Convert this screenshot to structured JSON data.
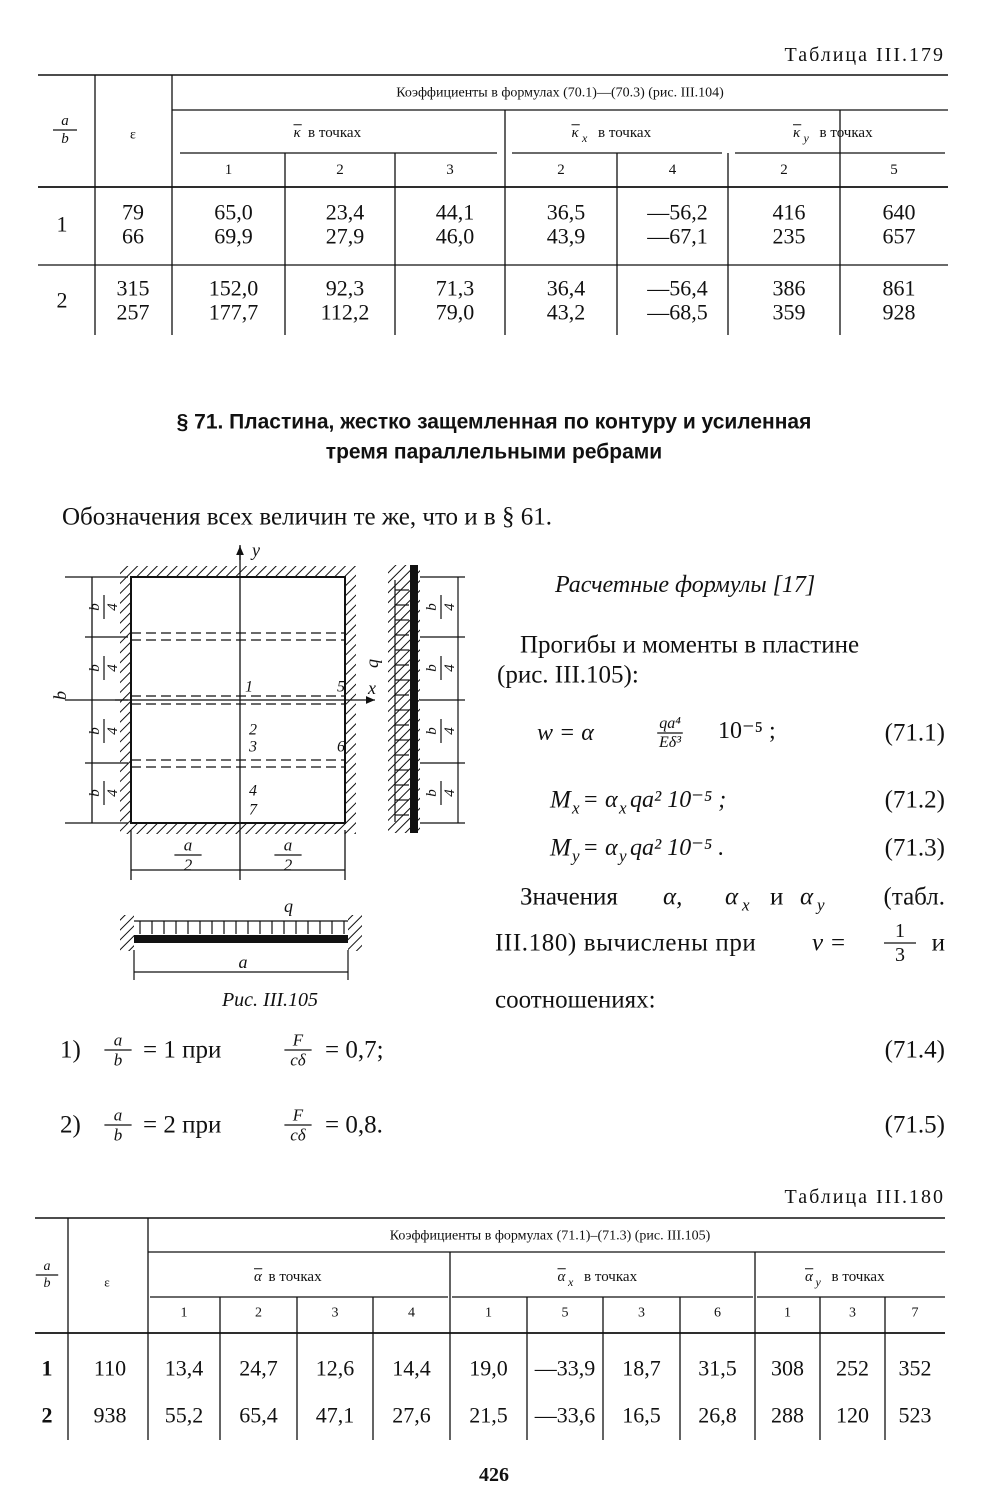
{
  "table1": {
    "caption": "Таблица III.179",
    "ratio": {
      "num": "a",
      "den": "b"
    },
    "eps": "ε",
    "group_title": "Коэффициенты в формулах (70.1)—(70.3) (рис. III.104)",
    "groups": [
      {
        "symbol": "κ",
        "label": "в точках",
        "points": [
          "1",
          "2",
          "3"
        ]
      },
      {
        "symbol": "κ",
        "sub": "x",
        "label": "в точках",
        "points": [
          "2",
          "4"
        ]
      },
      {
        "symbol": "κ",
        "sub": "y",
        "label": "в точках",
        "points": [
          "2",
          "5"
        ]
      }
    ],
    "rows": [
      {
        "ratio": "1",
        "eps": [
          "79",
          "66"
        ],
        "values": [
          [
            "65,0",
            "69,9"
          ],
          [
            "23,4",
            "27,9"
          ],
          [
            "44,1",
            "46,0"
          ],
          [
            "36,5",
            "43,9"
          ],
          [
            "—56,2",
            "—67,1"
          ],
          [
            "416",
            "235"
          ],
          [
            "640",
            "657"
          ]
        ]
      },
      {
        "ratio": "2",
        "eps": [
          "315",
          "257"
        ],
        "values": [
          [
            "152,0",
            "177,7"
          ],
          [
            "92,3",
            "112,2"
          ],
          [
            "71,3",
            "79,0"
          ],
          [
            "36,4",
            "43,2"
          ],
          [
            "—56,4",
            "—68,5"
          ],
          [
            "386",
            "359"
          ],
          [
            "861",
            "928"
          ]
        ]
      }
    ]
  },
  "section": {
    "title_lines": [
      "§ 71. Пластина, жестко защемленная по контуру и усиленная",
      "тремя параллельными ребрами"
    ],
    "note": "Обозначения всех величин те же, что и в § 61."
  },
  "figure": {
    "axis_y": "y",
    "axis_x": "x",
    "side": "b",
    "left_quarters": [
      {
        "num": "b",
        "den": "4"
      },
      {
        "num": "b",
        "den": "4"
      },
      {
        "num": "b",
        "den": "4"
      },
      {
        "num": "b",
        "den": "4"
      }
    ],
    "right_quarters": [
      {
        "num": "b",
        "den": "4"
      },
      {
        "num": "b",
        "den": "4"
      },
      {
        "num": "b",
        "den": "4"
      },
      {
        "num": "b",
        "den": "4"
      }
    ],
    "points": [
      "1",
      "5",
      "2",
      "3",
      "6",
      "4",
      "7"
    ],
    "halves": [
      {
        "num": "a",
        "den": "2"
      },
      {
        "num": "a",
        "den": "2"
      }
    ],
    "load_right": "q",
    "load_bottom": "q",
    "span": "a",
    "caption": "Рис. III.105"
  },
  "formulas": {
    "title": "Расчетные формулы [17]",
    "intro": [
      "Прогибы и моменты в пластине",
      "(рис. III.105):"
    ],
    "f1": {
      "lhs": "w = α",
      "num": "qa⁴",
      "den": "Eδ³",
      "rhs": "10⁻⁵ ;",
      "number": "(71.1)"
    },
    "f2": {
      "symbol": "M",
      "sub": "x",
      "eq": "=",
      "coef": "α",
      "coef_sub": "x",
      "rest": "qa² 10⁻⁵ ;",
      "number": "(71.2)"
    },
    "f3": {
      "symbol": "M",
      "sub": "y",
      "eq": "=",
      "coef": "α",
      "coef_sub": "y",
      "rest": "qa² 10⁻⁵ .",
      "number": "(71.3)"
    },
    "values_text": {
      "start": "Значения",
      "a": "α,",
      "ax": "α",
      "ax_sub": "x",
      "and": "и",
      "ay": "α",
      "ay_sub": "y",
      "end": "(табл.",
      "line2": "III.180) вычислены при",
      "nu": "ν =",
      "nu_frac": {
        "num": "1",
        "den": "3"
      },
      "line2_end": "и",
      "line3": "соотношениях:"
    }
  },
  "conditions": [
    {
      "index": "1)",
      "ratio": {
        "num": "a",
        "den": "b"
      },
      "eq1": "= 1  при",
      "frac": {
        "num": "F",
        "den": "cδ"
      },
      "eq2": "= 0,7;",
      "number": "(71.4)"
    },
    {
      "index": "2)",
      "ratio": {
        "num": "a",
        "den": "b"
      },
      "eq1": "= 2  при",
      "frac": {
        "num": "F",
        "den": "cδ"
      },
      "eq2": "= 0,8.",
      "number": "(71.5)"
    }
  ],
  "table2": {
    "caption": "Таблица III.180",
    "ratio": {
      "num": "a",
      "den": "b"
    },
    "eps": "ε",
    "group_title": "Коэффициенты в формулах (71.1)–(71.3) (рис. III.105)",
    "groups": [
      {
        "symbol": "α",
        "label": "в точках",
        "points": [
          "1",
          "2",
          "3",
          "4"
        ]
      },
      {
        "symbol": "α",
        "sub": "x",
        "label": "в точках",
        "points": [
          "1",
          "5",
          "3",
          "6"
        ]
      },
      {
        "symbol": "α",
        "sub": "y",
        "label": "в точках",
        "points": [
          "1",
          "3",
          "7"
        ]
      }
    ],
    "rows": [
      {
        "ratio": "1",
        "eps": "110",
        "values": [
          "13,4",
          "24,7",
          "12,6",
          "14,4",
          "19,0",
          "—33,9",
          "18,7",
          "31,5",
          "308",
          "252",
          "352"
        ]
      },
      {
        "ratio": "2",
        "eps": "938",
        "values": [
          "55,2",
          "65,4",
          "47,1",
          "27,6",
          "21,5",
          "—33,6",
          "16,5",
          "26,8",
          "288",
          "120",
          "523"
        ]
      }
    ]
  },
  "page_number": "426"
}
